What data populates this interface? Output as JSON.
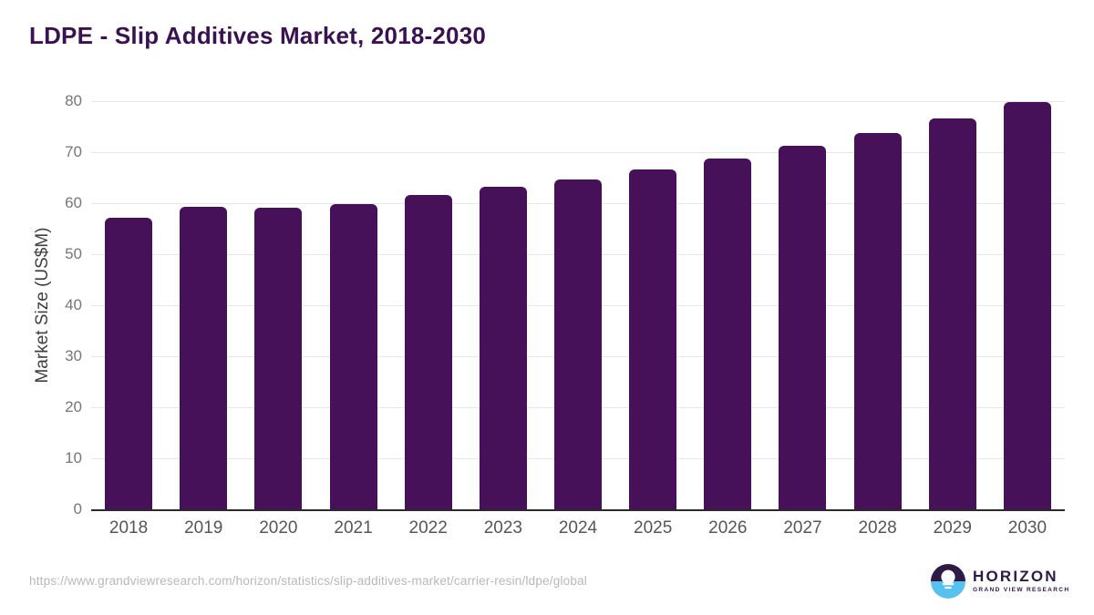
{
  "page": {
    "source_url": "https://www.grandviewresearch.com/horizon/statistics/slip-additives-market/carrier-resin/ldpe/global"
  },
  "chart_data": {
    "type": "bar",
    "title": "LDPE - Slip Additives Market, 2018-2030",
    "categories": [
      "2018",
      "2019",
      "2020",
      "2021",
      "2022",
      "2023",
      "2024",
      "2025",
      "2026",
      "2027",
      "2028",
      "2029",
      "2030"
    ],
    "values": [
      57.1,
      59.3,
      59.1,
      59.9,
      61.6,
      63.2,
      64.7,
      66.6,
      68.8,
      71.3,
      73.8,
      76.6,
      79.9
    ],
    "xlabel": "",
    "ylabel": "Market Size (US$M)",
    "ylim": [
      0,
      80
    ],
    "ytick_step": 10,
    "yticks": [
      "0",
      "10",
      "20",
      "30",
      "40",
      "50",
      "60",
      "70",
      "80"
    ],
    "grid": "horizontal",
    "legend": "none",
    "bar_color": "#461158"
  },
  "colors": {
    "background": "#ffffff",
    "title_text": "#3a1252",
    "bar": "#461158",
    "gridline": "#e8e8e8",
    "axis_line": "#2b2b2b",
    "y_tick_text": "#777777",
    "x_tick_text": "#565656",
    "url_text": "#b8b8b8",
    "logo_purple": "#2e1a47",
    "logo_blue": "#57c1ef"
  },
  "logo": {
    "icon": "horizon-sunset-circle-icon",
    "name": "HORIZON",
    "subtext": "GRAND VIEW RESEARCH"
  }
}
